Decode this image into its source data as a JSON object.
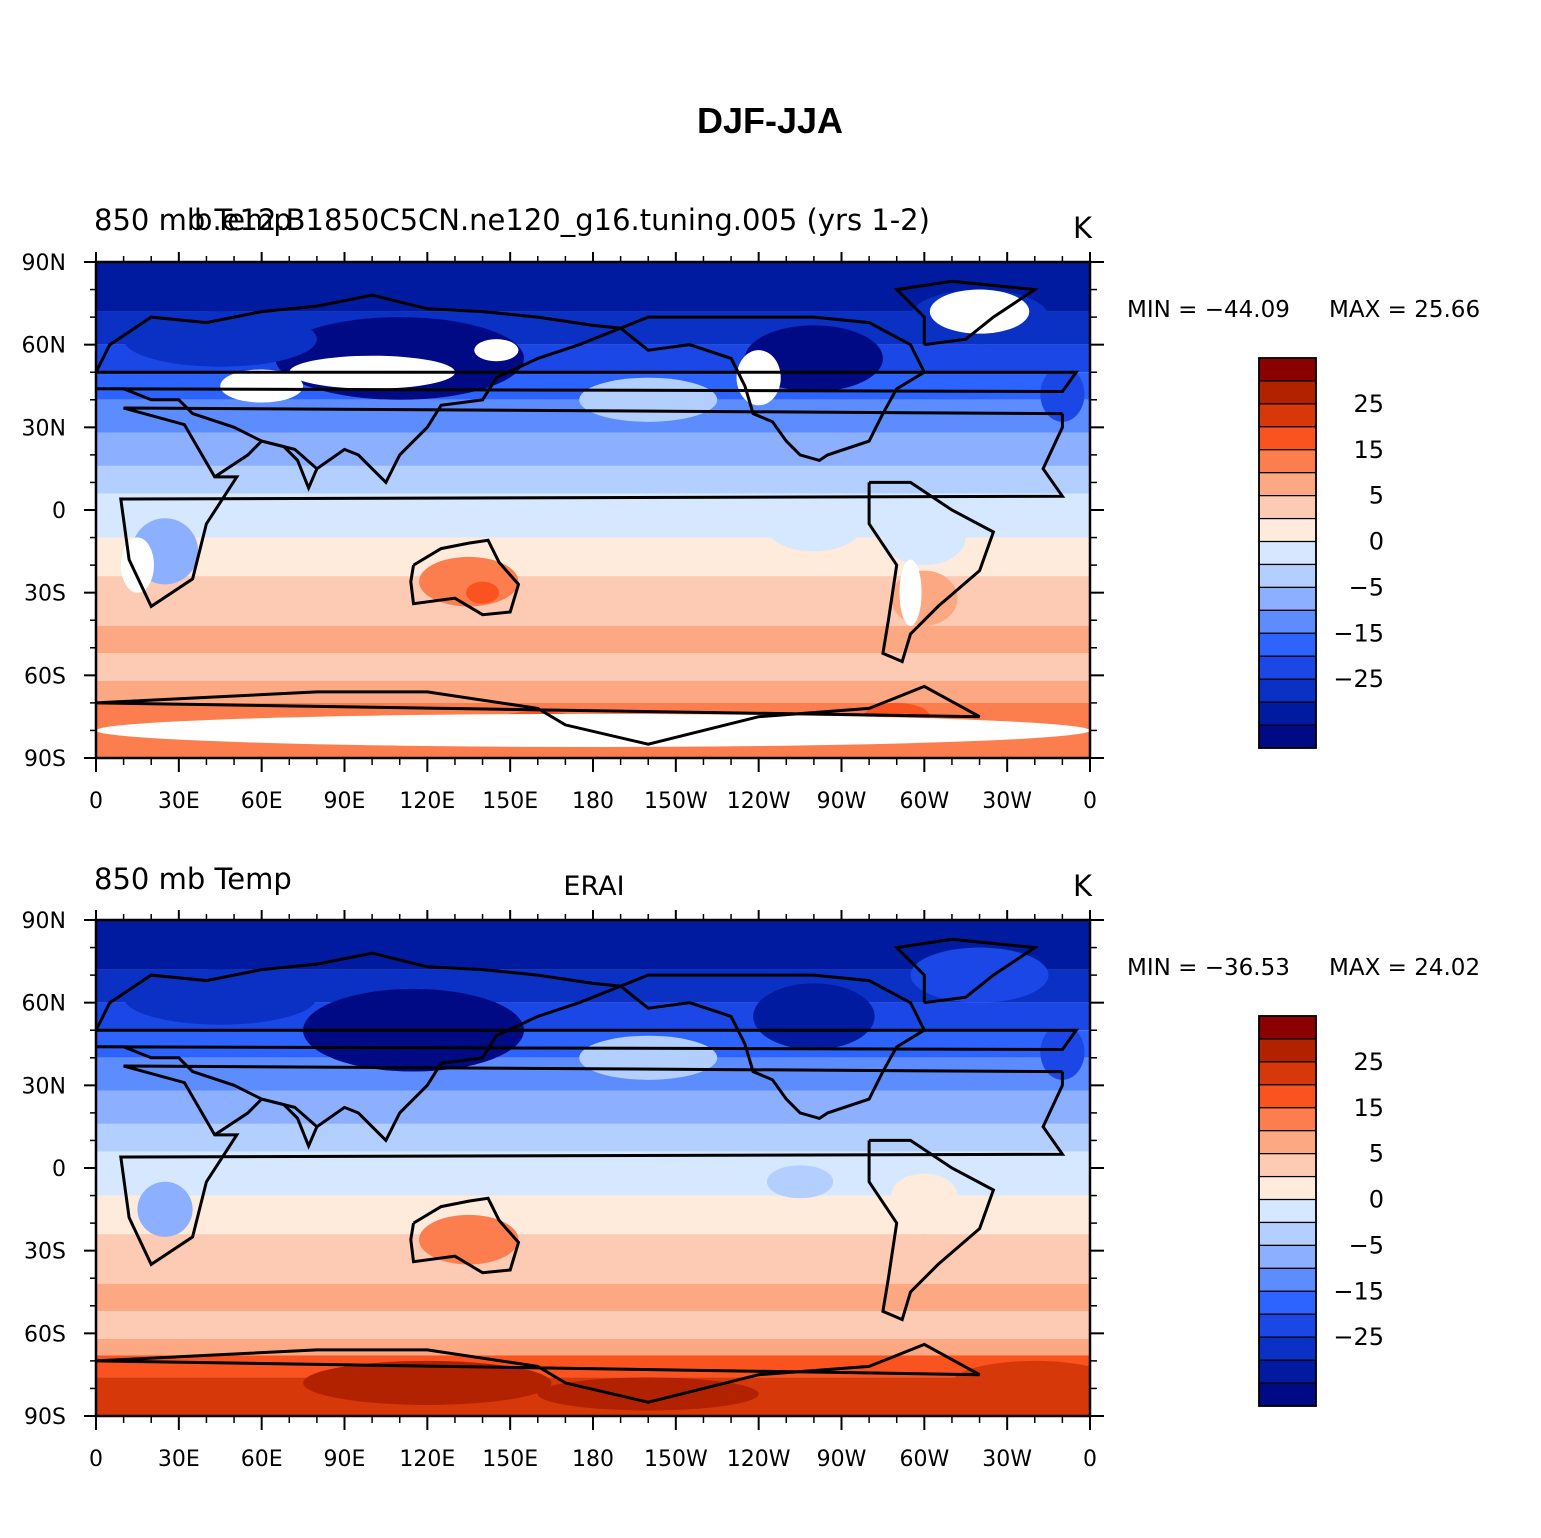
{
  "figure": {
    "title": "DJF-JJA"
  },
  "chart_data": [
    {
      "type": "heatmap",
      "left_label": "850 mb Temp",
      "center_label": "b.e12.B1850C5CN.ne120_g16.tuning.005 (yrs 1-2)",
      "units": "K",
      "min_text": "MIN = −44.09",
      "max_text": "MAX =   25.66",
      "min": -44.09,
      "max": 25.66,
      "has_missing_land": true,
      "xlim": [
        0,
        360
      ],
      "ylim": [
        -90,
        90
      ],
      "x_tick_labels": [
        "0",
        "30E",
        "60E",
        "90E",
        "120E",
        "150E",
        "180",
        "150W",
        "120W",
        "90W",
        "60W",
        "30W",
        "0"
      ],
      "y_tick_labels": [
        "90N",
        "60N",
        "30N",
        "0",
        "30S",
        "60S",
        "90S"
      ]
    },
    {
      "type": "heatmap",
      "left_label": "850 mb Temp",
      "center_label": "ERAI",
      "units": "K",
      "min_text": "MIN = −36.53",
      "max_text": "MAX =   24.02",
      "min": -36.53,
      "max": 24.02,
      "has_missing_land": false,
      "xlim": [
        0,
        360
      ],
      "ylim": [
        -90,
        90
      ],
      "x_tick_labels": [
        "0",
        "30E",
        "60E",
        "90E",
        "120E",
        "150E",
        "180",
        "150W",
        "120W",
        "90W",
        "60W",
        "30W",
        "0"
      ],
      "y_tick_labels": [
        "90N",
        "60N",
        "30N",
        "0",
        "30S",
        "60S",
        "90S"
      ]
    }
  ],
  "colorbar": {
    "colors": [
      "#8b0000",
      "#b22200",
      "#d7380a",
      "#fb5320",
      "#fc7e4f",
      "#fca883",
      "#fdcab3",
      "#feebdc",
      "#d5e8ff",
      "#b3cfff",
      "#8cb0ff",
      "#5c8cff",
      "#2d63ff",
      "#1a47e6",
      "#0a30c4",
      "#001b9f",
      "#000a85"
    ],
    "tick_labels": [
      "25",
      "15",
      "5",
      "0",
      "−5",
      "−15",
      "−25"
    ]
  }
}
